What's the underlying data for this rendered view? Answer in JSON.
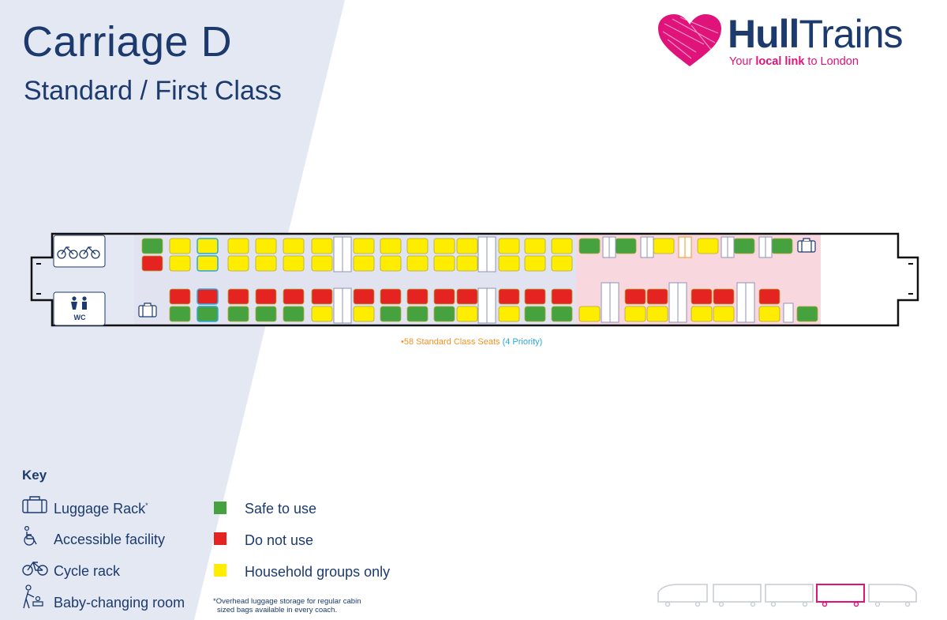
{
  "header": {
    "title": "Carriage D",
    "subtitle": "Standard / First Class"
  },
  "logo": {
    "word_bold": "Hull",
    "word_regular": "Trains",
    "tag_prefix": "Your ",
    "tag_bold": "local link",
    "tag_suffix": " to London"
  },
  "carriage": {
    "wc_label": "WC",
    "seat_note_main": "•58 Standard Class Seats ",
    "seat_note_priority": "(4 Priority)"
  },
  "key": {
    "title": "Key",
    "luggage": "Luggage Rack",
    "luggage_mark": "*",
    "accessible": "Accessible facility",
    "cycle": "Cycle rack",
    "baby": "Baby-changing room",
    "safe": "Safe to use",
    "do_not_use": "Do not use",
    "household": "Household groups only"
  },
  "footnote": {
    "line1": "*Overhead luggage storage for regular cabin",
    "line2": "sized bags available in every coach."
  },
  "colors": {
    "navy": "#1c3a6e",
    "green": "#46a23f",
    "red": "#e52421",
    "yellow": "#ffed00",
    "pink": "#e0137a",
    "orange": "#f39325",
    "cyan": "#29a8df",
    "wedge": "#e4e8f2",
    "first_class": "#f8d7df"
  },
  "icons": {
    "luggage": "luggage-rack-icon",
    "accessible": "wheelchair-icon",
    "cycle": "bicycle-icon",
    "baby": "baby-changing-icon"
  }
}
